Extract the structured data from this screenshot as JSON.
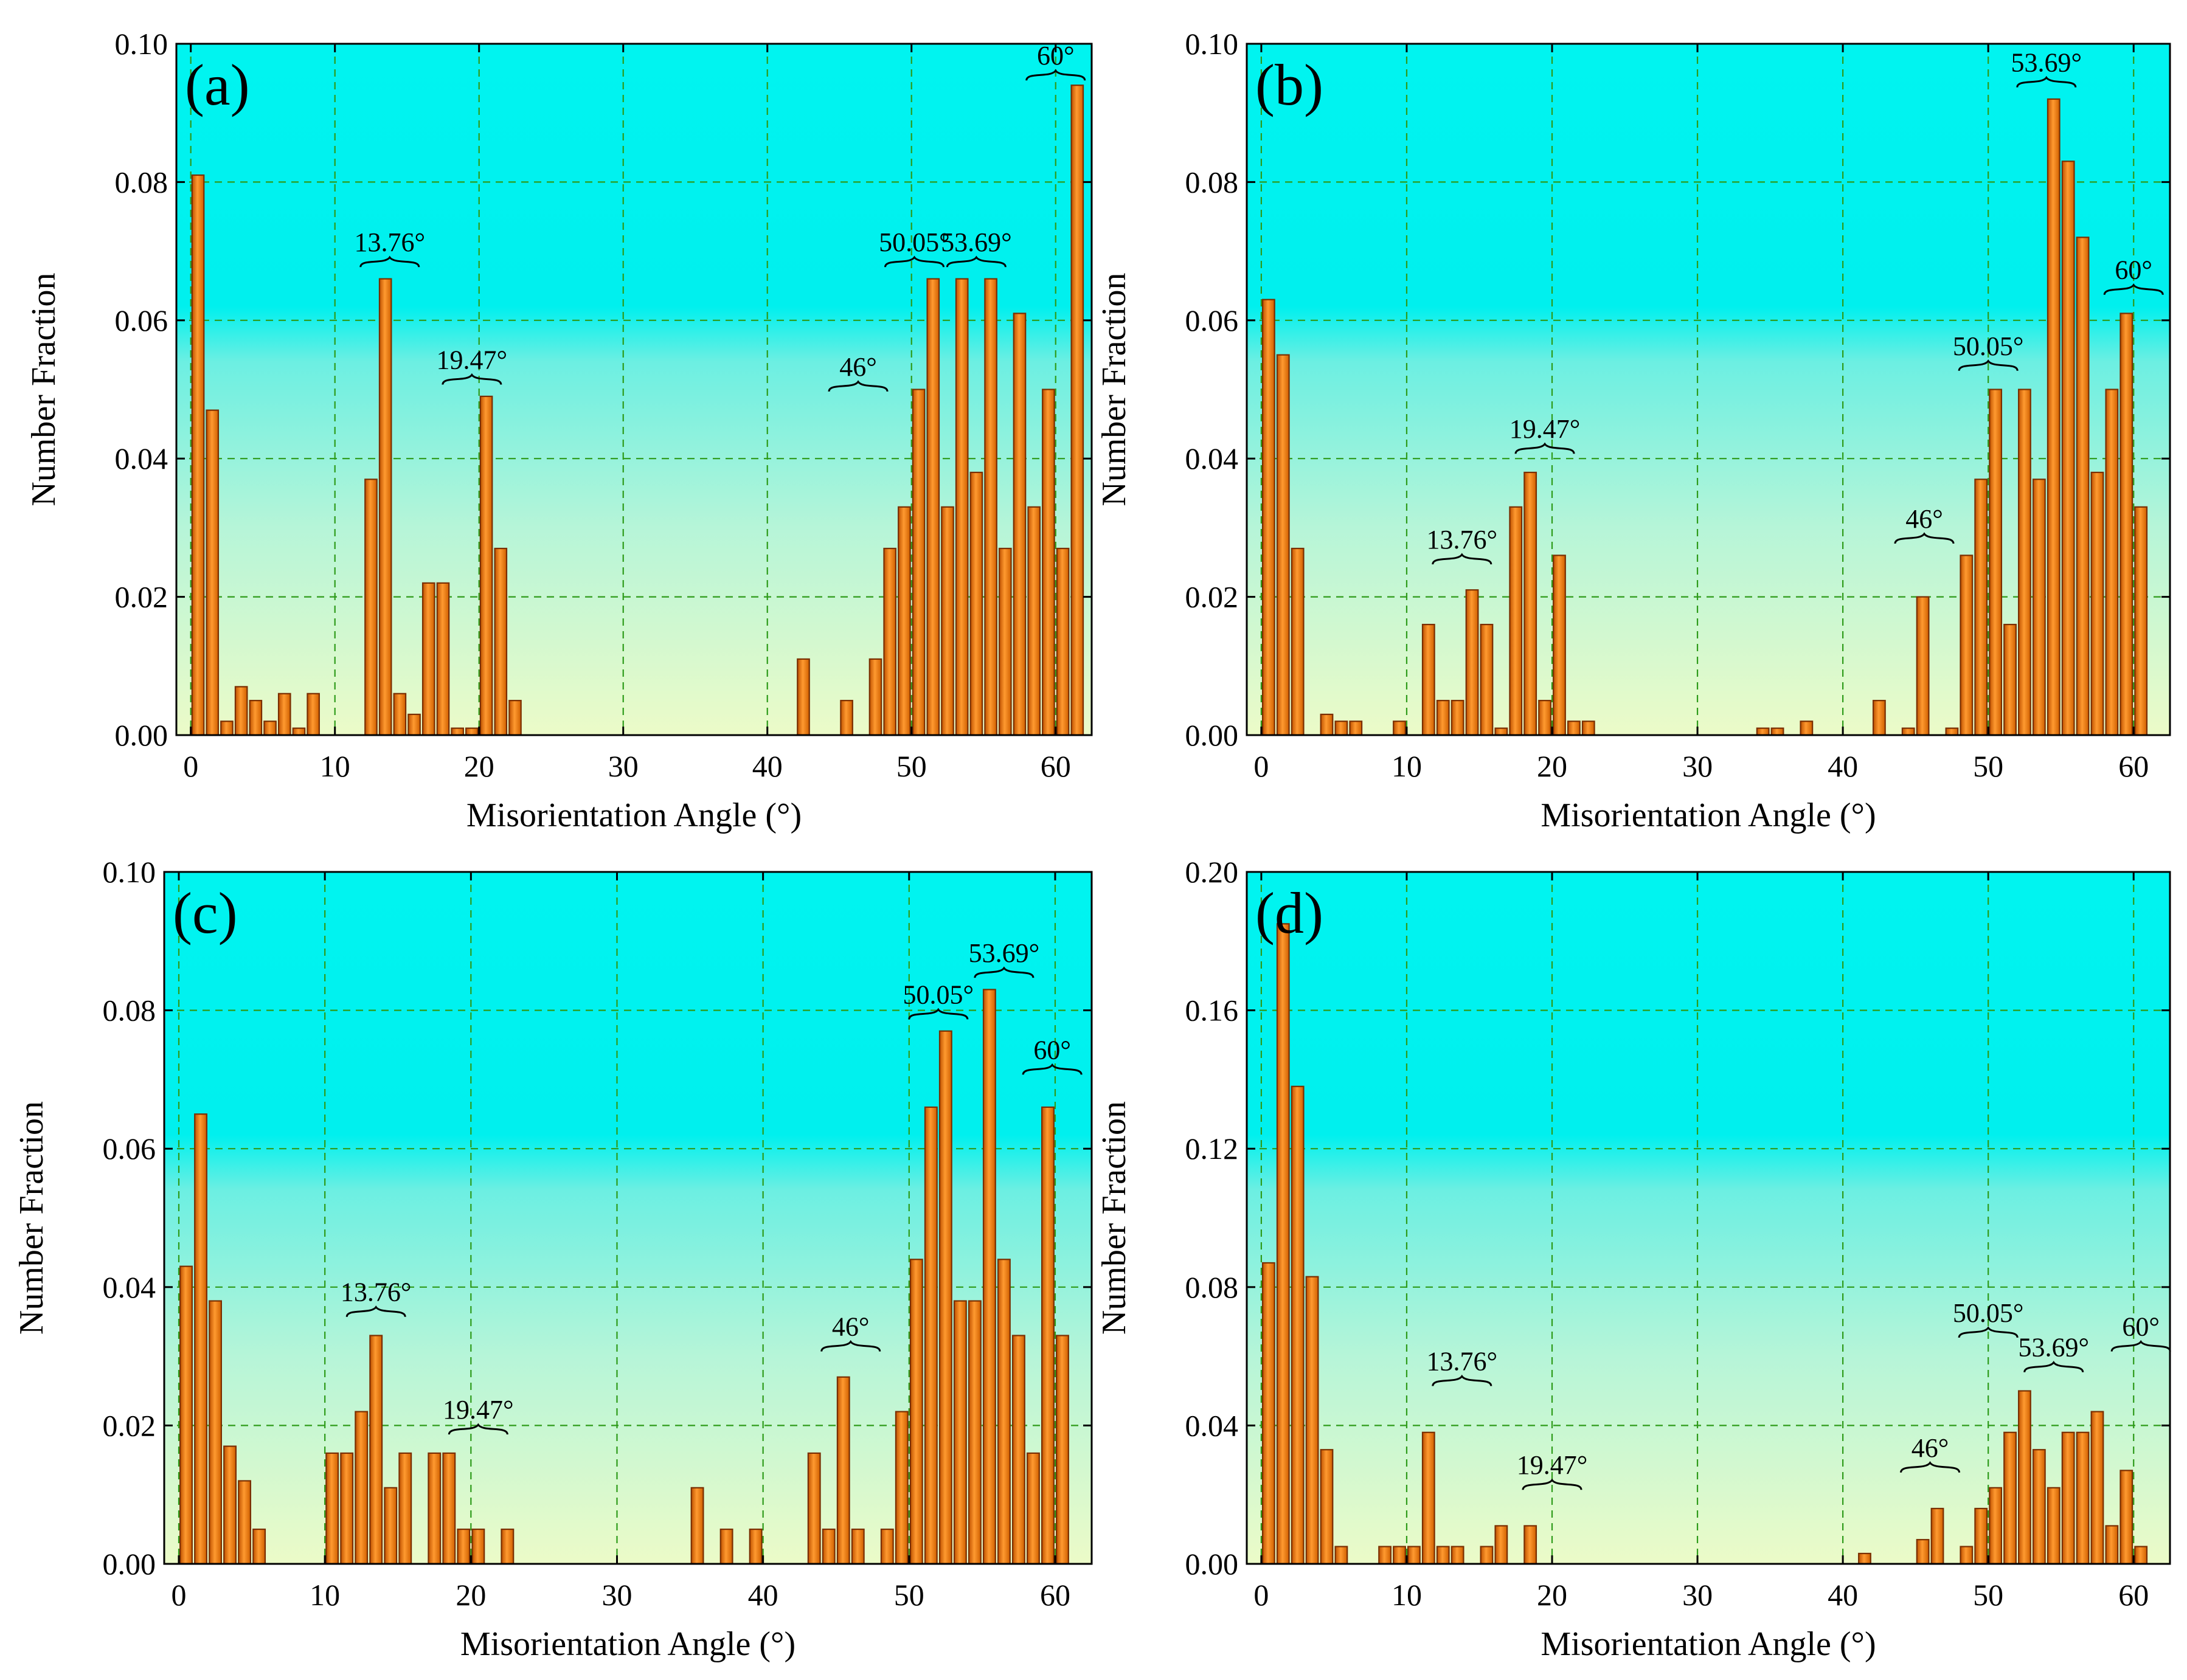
{
  "chart_data": [
    {
      "type": "bar",
      "panel_label": "(a)",
      "xlabel": "Misorientation Angle (°)",
      "ylabel": "Number Fraction",
      "xlim": [
        -1,
        62.5
      ],
      "ylim": [
        0,
        0.1
      ],
      "xticks": [
        0,
        10,
        20,
        30,
        40,
        50,
        60
      ],
      "yticks": [
        0.0,
        0.02,
        0.04,
        0.06,
        0.08,
        0.1
      ],
      "xtick_labels": [
        "0",
        "10",
        "20",
        "30",
        "40",
        "50",
        "60"
      ],
      "ytick_labels": [
        "0.00",
        "0.02",
        "0.04",
        "0.06",
        "0.08",
        "0.10"
      ],
      "x": [
        0.5,
        1.5,
        2.5,
        3.5,
        4.5,
        5.5,
        6.5,
        7.5,
        8.5,
        12.5,
        13.5,
        14.5,
        15.5,
        16.5,
        17.5,
        18.5,
        19.5,
        20.5,
        21.5,
        22.5,
        42.5,
        45.5,
        47.5,
        48.5,
        49.5,
        50.5,
        51.5,
        52.5,
        53.5,
        54.5,
        55.5,
        56.5,
        57.5,
        58.5,
        59.5,
        60.5,
        61.5
      ],
      "values": [
        0.081,
        0.047,
        0.002,
        0.007,
        0.005,
        0.002,
        0.006,
        0.001,
        0.006,
        0.037,
        0.066,
        0.006,
        0.003,
        0.022,
        0.022,
        0.001,
        0.001,
        0.049,
        0.027,
        0.005,
        0.011,
        0.005,
        0.011,
        0.027,
        0.033,
        0.05,
        0.066,
        0.033,
        0.066,
        0.038,
        0.066,
        0.027,
        0.061,
        0.033,
        0.05,
        0.027,
        0.094
      ],
      "annotations": [
        {
          "text": "13.76°",
          "x": 13.8,
          "y": 0.067
        },
        {
          "text": "19.47°",
          "x": 19.5,
          "y": 0.05
        },
        {
          "text": "46°",
          "x": 46.3,
          "y": 0.049
        },
        {
          "text": "50.05°",
          "x": 50.2,
          "y": 0.067
        },
        {
          "text": "53.69°",
          "x": 54.5,
          "y": 0.067
        },
        {
          "text": "60°",
          "x": 60.0,
          "y": 0.094
        }
      ]
    },
    {
      "type": "bar",
      "panel_label": "(b)",
      "xlabel": "Misorientation Angle (°)",
      "ylabel": "Number Fraction",
      "xlim": [
        -1,
        62.5
      ],
      "ylim": [
        0,
        0.1
      ],
      "xticks": [
        0,
        10,
        20,
        30,
        40,
        50,
        60
      ],
      "yticks": [
        0.0,
        0.02,
        0.04,
        0.06,
        0.08,
        0.1
      ],
      "xtick_labels": [
        "0",
        "10",
        "20",
        "30",
        "40",
        "50",
        "60"
      ],
      "ytick_labels": [
        "0.00",
        "0.02",
        "0.04",
        "0.06",
        "0.08",
        "0.10"
      ],
      "x": [
        0.5,
        1.5,
        2.5,
        4.5,
        5.5,
        6.5,
        9.5,
        11.5,
        12.5,
        13.5,
        14.5,
        15.5,
        16.5,
        17.5,
        18.5,
        19.5,
        20.5,
        21.5,
        22.5,
        34.5,
        35.5,
        37.5,
        42.5,
        44.5,
        45.5,
        47.5,
        48.5,
        49.5,
        50.5,
        51.5,
        52.5,
        53.5,
        54.5,
        55.5,
        56.5,
        57.5,
        58.5,
        59.5,
        60.5
      ],
      "values": [
        0.063,
        0.055,
        0.027,
        0.003,
        0.002,
        0.002,
        0.002,
        0.016,
        0.005,
        0.005,
        0.021,
        0.016,
        0.001,
        0.033,
        0.038,
        0.005,
        0.026,
        0.002,
        0.002,
        0.001,
        0.001,
        0.002,
        0.005,
        0.001,
        0.02,
        0.001,
        0.026,
        0.037,
        0.05,
        0.016,
        0.05,
        0.037,
        0.092,
        0.083,
        0.072,
        0.038,
        0.05,
        0.061,
        0.033
      ],
      "annotations": [
        {
          "text": "13.76°",
          "x": 13.8,
          "y": 0.024
        },
        {
          "text": "19.47°",
          "x": 19.5,
          "y": 0.04
        },
        {
          "text": "46°",
          "x": 45.6,
          "y": 0.027
        },
        {
          "text": "50.05°",
          "x": 50.0,
          "y": 0.052
        },
        {
          "text": "53.69°",
          "x": 54.0,
          "y": 0.093
        },
        {
          "text": "60°",
          "x": 60.0,
          "y": 0.063
        }
      ]
    },
    {
      "type": "bar",
      "panel_label": "(c)",
      "xlabel": "Misorientation Angle (°)",
      "ylabel": "Number Fraction",
      "xlim": [
        -1,
        62.5
      ],
      "ylim": [
        0,
        0.1
      ],
      "xticks": [
        0,
        10,
        20,
        30,
        40,
        50,
        60
      ],
      "yticks": [
        0.0,
        0.02,
        0.04,
        0.06,
        0.08,
        0.1
      ],
      "xtick_labels": [
        "0",
        "10",
        "20",
        "30",
        "40",
        "50",
        "60"
      ],
      "ytick_labels": [
        "0.00",
        "0.02",
        "0.04",
        "0.06",
        "0.08",
        "0.10"
      ],
      "x": [
        0.5,
        1.5,
        2.5,
        3.5,
        4.5,
        5.5,
        10.5,
        11.5,
        12.5,
        13.5,
        14.5,
        15.5,
        17.5,
        18.5,
        19.5,
        20.5,
        22.5,
        35.5,
        37.5,
        39.5,
        43.5,
        44.5,
        45.5,
        46.5,
        48.5,
        49.5,
        50.5,
        51.5,
        52.5,
        53.5,
        54.5,
        55.5,
        56.5,
        57.5,
        58.5,
        59.5,
        60.5
      ],
      "values": [
        0.043,
        0.065,
        0.038,
        0.017,
        0.012,
        0.005,
        0.016,
        0.016,
        0.022,
        0.033,
        0.011,
        0.016,
        0.016,
        0.016,
        0.005,
        0.005,
        0.005,
        0.011,
        0.005,
        0.005,
        0.016,
        0.005,
        0.027,
        0.005,
        0.005,
        0.022,
        0.044,
        0.066,
        0.077,
        0.038,
        0.038,
        0.083,
        0.044,
        0.033,
        0.016,
        0.066,
        0.033
      ],
      "annotations": [
        {
          "text": "13.76°",
          "x": 13.5,
          "y": 0.035
        },
        {
          "text": "19.47°",
          "x": 20.5,
          "y": 0.018
        },
        {
          "text": "46°",
          "x": 46.0,
          "y": 0.03
        },
        {
          "text": "50.05°",
          "x": 52.0,
          "y": 0.078
        },
        {
          "text": "53.69°",
          "x": 56.5,
          "y": 0.084
        },
        {
          "text": "60°",
          "x": 59.8,
          "y": 0.07
        }
      ]
    },
    {
      "type": "bar",
      "panel_label": "(d)",
      "xlabel": "Misorientation Angle (°)",
      "ylabel": "Number Fraction",
      "xlim": [
        -1,
        62.5
      ],
      "ylim": [
        0,
        0.2
      ],
      "xticks": [
        0,
        10,
        20,
        30,
        40,
        50,
        60
      ],
      "yticks": [
        0.0,
        0.04,
        0.08,
        0.12,
        0.16,
        0.2
      ],
      "xtick_labels": [
        "0",
        "10",
        "20",
        "30",
        "40",
        "50",
        "60"
      ],
      "ytick_labels": [
        "0.00",
        "0.04",
        "0.08",
        "0.12",
        "0.16",
        "0.20"
      ],
      "x": [
        0.5,
        1.5,
        2.5,
        3.5,
        4.5,
        5.5,
        8.5,
        9.5,
        10.5,
        11.5,
        12.5,
        13.5,
        15.5,
        16.5,
        18.5,
        41.5,
        45.5,
        46.5,
        48.5,
        49.5,
        50.5,
        51.5,
        52.5,
        53.5,
        54.5,
        55.5,
        56.5,
        57.5,
        58.5,
        59.5,
        60.5
      ],
      "values": [
        0.087,
        0.185,
        0.138,
        0.083,
        0.033,
        0.005,
        0.005,
        0.005,
        0.005,
        0.038,
        0.005,
        0.005,
        0.005,
        0.011,
        0.011,
        0.003,
        0.007,
        0.016,
        0.005,
        0.016,
        0.022,
        0.038,
        0.05,
        0.033,
        0.022,
        0.038,
        0.038,
        0.044,
        0.011,
        0.027,
        0.005
      ],
      "annotations": [
        {
          "text": "13.76°",
          "x": 13.8,
          "y": 0.05
        },
        {
          "text": "19.47°",
          "x": 20.0,
          "y": 0.02
        },
        {
          "text": "46°",
          "x": 46.0,
          "y": 0.025
        },
        {
          "text": "50.05°",
          "x": 50.0,
          "y": 0.064
        },
        {
          "text": "53.69°",
          "x": 54.5,
          "y": 0.054
        },
        {
          "text": "60°",
          "x": 60.5,
          "y": 0.06
        }
      ]
    }
  ]
}
